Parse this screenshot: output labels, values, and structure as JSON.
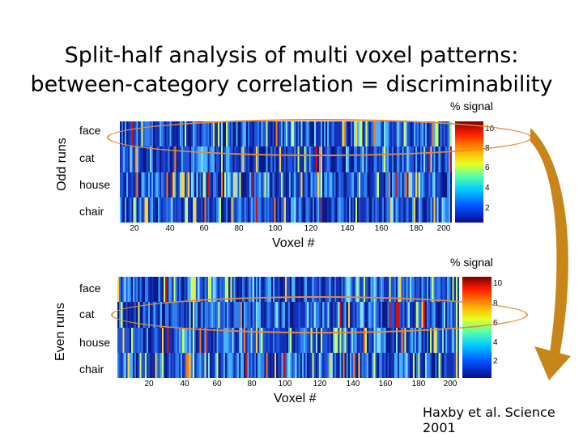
{
  "title": {
    "line1": "Split-half analysis of multi voxel patterns:",
    "line2": "between-category correlation = discriminability"
  },
  "panels": [
    {
      "side_label": "Odd runs",
      "signal_label": "% signal",
      "rows": [
        "face",
        "cat",
        "house",
        "chair"
      ],
      "x_ticks": [
        "20",
        "40",
        "60",
        "80",
        "100",
        "120",
        "140",
        "160",
        "180",
        "200"
      ],
      "x_label": "Voxel #",
      "colorbar_ticks": [
        "10",
        "8",
        "6",
        "4",
        "2"
      ],
      "highlighted_row": "face"
    },
    {
      "side_label": "Even runs",
      "signal_label": "% signal",
      "rows": [
        "face",
        "cat",
        "house",
        "chair"
      ],
      "x_ticks": [
        "20",
        "40",
        "60",
        "80",
        "100",
        "120",
        "140",
        "160",
        "180",
        "200"
      ],
      "x_label": "Voxel #",
      "colorbar_ticks": [
        "10",
        "8",
        "6",
        "4",
        "2"
      ],
      "highlighted_row": "cat"
    }
  ],
  "citation": "Haxby et al. Science 2001",
  "colors": {
    "ellipse": "#e08a3a",
    "arrow": "#c8861a",
    "heatmap_base": "#1a2fb0"
  }
}
